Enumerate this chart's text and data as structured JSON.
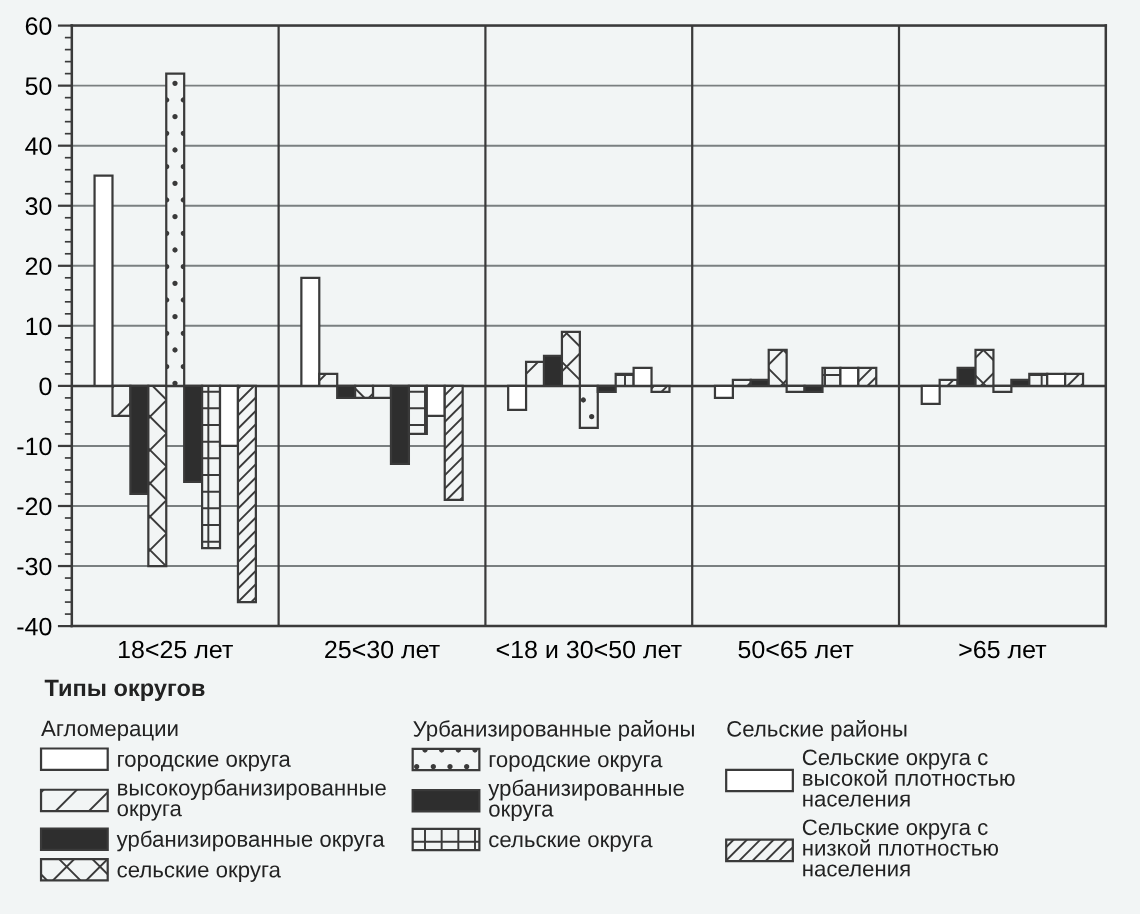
{
  "chart_data": {
    "type": "bar",
    "categories": [
      "18<25 лет",
      "25<30 лет",
      "<18 и 30<50 лет",
      "50<65 лет",
      ">65 лет"
    ],
    "ylim": [
      -40,
      60
    ],
    "yticks": [
      -40,
      -30,
      -20,
      -10,
      0,
      10,
      20,
      30,
      40,
      50,
      60
    ],
    "grid": true,
    "legend": "bottom",
    "legend_title": "Типы округов",
    "annotations": [
      "Агломерации",
      "Урбанизированные районы",
      "Сельские районы"
    ],
    "series": [
      {
        "name": "городские округа",
        "color": "#ffffff",
        "values": [
          35,
          18,
          -4,
          -2,
          -3
        ]
      },
      {
        "name": "высокоурбанизированные\nокруга",
        "color": "#3a3a3a",
        "values": [
          -5,
          2,
          4,
          1,
          1
        ]
      },
      {
        "name": "урбанизированные округа",
        "color": "#2e2e2e",
        "values": [
          -18,
          -2,
          5,
          1,
          3
        ]
      },
      {
        "name": "сельские округа",
        "color": "#3a3a3a",
        "values": [
          -30,
          -2,
          9,
          6,
          6
        ]
      },
      {
        "name": "городские округа",
        "color": "#3a3a3a",
        "values": [
          52,
          -2,
          -7,
          -1,
          -1
        ]
      },
      {
        "name": "урбанизированные\nокруга",
        "color": "#2e2e2e",
        "values": [
          -16,
          -13,
          -1,
          -1,
          1
        ]
      },
      {
        "name": "сельские округа",
        "color": "#3a3a3a",
        "values": [
          -27,
          -8,
          2,
          3,
          2
        ]
      },
      {
        "name": "Сельские округа с\nвысокой плотностью\nнаселения",
        "color": "#ffffff",
        "values": [
          -10,
          -5,
          3,
          3,
          2
        ]
      },
      {
        "name": "Сельские округа с\nнизкой плотностью\nнаселения",
        "color": "#3a3a3a",
        "values": [
          -36,
          -19,
          -1,
          3,
          2
        ]
      }
    ]
  }
}
